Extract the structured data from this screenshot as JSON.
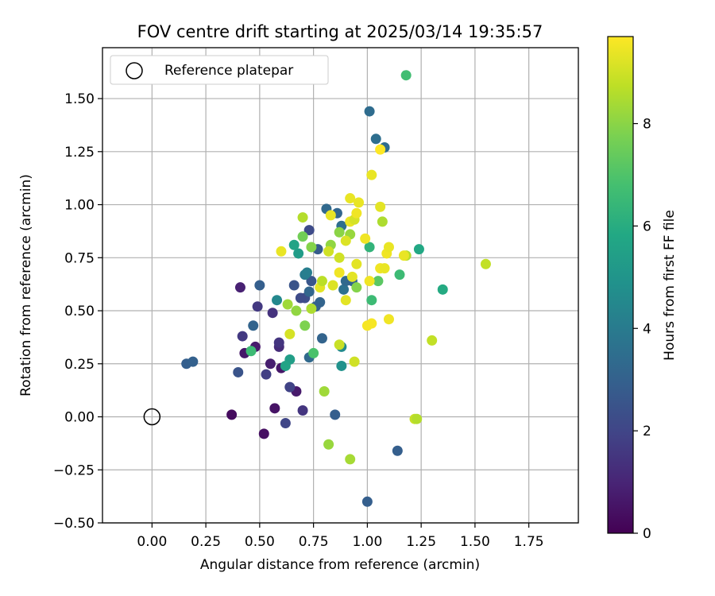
{
  "chart_data": {
    "type": "scatter",
    "title": "FOV centre drift starting at 2025/03/14 19:35:57",
    "xlabel": "Angular distance from reference (arcmin)",
    "ylabel": "Rotation from reference (arcmin)",
    "xlim": [
      -0.23,
      1.98
    ],
    "ylim": [
      -0.5,
      1.74
    ],
    "xticks": [
      "0.00",
      "0.25",
      "0.50",
      "0.75",
      "1.00",
      "1.25",
      "1.50",
      "1.75"
    ],
    "yticks": [
      "1.50",
      "1.25",
      "1.00",
      "0.75",
      "0.50",
      "0.25",
      "0.00",
      "−0.25",
      "−0.50"
    ],
    "grid": true,
    "legend": {
      "position": "top-left",
      "entries": [
        "Reference platepar"
      ]
    },
    "reference": {
      "name": "Reference platepar",
      "x": 0.0,
      "y": 0.0
    },
    "colorbar": {
      "label": "Hours from first FF file",
      "min": 0,
      "max": 9.7,
      "ticks": [
        "0",
        "2",
        "4",
        "6",
        "8"
      ],
      "colormap": "viridis"
    },
    "points": [
      [
        0.37,
        0.01,
        0.3
      ],
      [
        0.52,
        -0.08,
        0.4
      ],
      [
        0.57,
        0.04,
        0.5
      ],
      [
        0.6,
        0.23,
        0.6
      ],
      [
        0.55,
        0.25,
        0.8
      ],
      [
        0.48,
        0.33,
        0.7
      ],
      [
        0.43,
        0.3,
        0.6
      ],
      [
        0.41,
        0.61,
        0.9
      ],
      [
        0.67,
        0.12,
        0.7
      ],
      [
        0.59,
        0.33,
        1.2
      ],
      [
        0.7,
        0.03,
        1.5
      ],
      [
        0.62,
        -0.03,
        2.0
      ],
      [
        0.59,
        0.35,
        1.5
      ],
      [
        0.56,
        0.49,
        1.4
      ],
      [
        0.49,
        0.52,
        1.6
      ],
      [
        0.42,
        0.38,
        1.6
      ],
      [
        0.53,
        0.2,
        1.8
      ],
      [
        0.64,
        0.14,
        1.9
      ],
      [
        0.4,
        0.21,
        2.5
      ],
      [
        0.16,
        0.25,
        2.9
      ],
      [
        0.19,
        0.26,
        3.0
      ],
      [
        0.85,
        0.01,
        2.9
      ],
      [
        1.0,
        -0.4,
        2.9
      ],
      [
        1.14,
        -0.16,
        2.9
      ],
      [
        0.5,
        0.62,
        2.9
      ],
      [
        0.47,
        0.43,
        3.1
      ],
      [
        0.66,
        0.62,
        2.5
      ],
      [
        0.71,
        0.56,
        2.3
      ],
      [
        0.69,
        0.56,
        2.2
      ],
      [
        0.74,
        0.64,
        2.6
      ],
      [
        0.73,
        0.59,
        3.2
      ],
      [
        0.78,
        0.54,
        3.1
      ],
      [
        0.76,
        0.52,
        3.0
      ],
      [
        0.79,
        0.37,
        3.1
      ],
      [
        0.73,
        0.88,
        2.2
      ],
      [
        0.77,
        0.79,
        2.8
      ],
      [
        0.81,
        0.98,
        3.3
      ],
      [
        0.86,
        0.96,
        3.2
      ],
      [
        0.88,
        0.9,
        3.5
      ],
      [
        0.89,
        0.6,
        3.6
      ],
      [
        0.9,
        0.64,
        3.3
      ],
      [
        0.93,
        0.64,
        3.1
      ],
      [
        0.71,
        0.67,
        4.0
      ],
      [
        0.72,
        0.68,
        4.1
      ],
      [
        0.73,
        0.28,
        3.3
      ],
      [
        1.01,
        1.44,
        3.4
      ],
      [
        1.04,
        1.31,
        3.5
      ],
      [
        1.08,
        1.27,
        3.4
      ],
      [
        0.58,
        0.55,
        4.5
      ],
      [
        0.68,
        0.77,
        5.3
      ],
      [
        0.66,
        0.81,
        5.6
      ],
      [
        0.88,
        0.33,
        4.6
      ],
      [
        0.88,
        0.24,
        4.9
      ],
      [
        0.64,
        0.27,
        5.4
      ],
      [
        0.62,
        0.24,
        5.6
      ],
      [
        1.35,
        0.6,
        5.9
      ],
      [
        1.24,
        0.79,
        5.8
      ],
      [
        1.01,
        0.8,
        6.3
      ],
      [
        1.02,
        0.55,
        6.6
      ],
      [
        1.15,
        0.67,
        6.6
      ],
      [
        0.46,
        0.31,
        6.6
      ],
      [
        0.75,
        0.3,
        6.9
      ],
      [
        1.18,
        1.61,
        6.7
      ],
      [
        1.05,
        0.64,
        7.2
      ],
      [
        0.7,
        0.85,
        7.6
      ],
      [
        0.74,
        0.8,
        7.9
      ],
      [
        0.83,
        0.81,
        8.1
      ],
      [
        0.87,
        0.87,
        8.0
      ],
      [
        0.92,
        0.86,
        8.2
      ],
      [
        0.95,
        0.61,
        7.9
      ],
      [
        0.71,
        0.43,
        7.8
      ],
      [
        0.67,
        0.5,
        8.1
      ],
      [
        0.63,
        0.53,
        8.3
      ],
      [
        0.74,
        0.51,
        8.5
      ],
      [
        0.8,
        0.12,
        8.3
      ],
      [
        0.82,
        -0.13,
        8.2
      ],
      [
        0.92,
        -0.2,
        8.4
      ],
      [
        1.07,
        0.92,
        8.5
      ],
      [
        1.18,
        0.76,
        8.6
      ],
      [
        1.3,
        0.36,
        8.8
      ],
      [
        1.22,
        -0.01,
        8.9
      ],
      [
        1.23,
        -0.01,
        8.6
      ],
      [
        1.55,
        0.72,
        8.8
      ],
      [
        0.7,
        0.94,
        8.6
      ],
      [
        0.87,
        0.34,
        8.9
      ],
      [
        0.94,
        0.26,
        9.0
      ],
      [
        0.64,
        0.39,
        9.1
      ],
      [
        0.78,
        0.61,
        9.3
      ],
      [
        0.82,
        0.78,
        9.0
      ],
      [
        0.84,
        0.62,
        9.2
      ],
      [
        0.87,
        0.75,
        9.0
      ],
      [
        0.9,
        0.55,
        9.3
      ],
      [
        0.9,
        0.83,
        9.2
      ],
      [
        0.92,
        0.92,
        9.4
      ],
      [
        0.93,
        0.66,
        9.3
      ],
      [
        0.94,
        0.93,
        9.1
      ],
      [
        0.95,
        0.72,
        9.3
      ],
      [
        0.96,
        1.01,
        9.4
      ],
      [
        0.92,
        1.03,
        9.4
      ],
      [
        0.95,
        0.96,
        9.5
      ],
      [
        0.87,
        0.68,
        9.5
      ],
      [
        0.99,
        0.84,
        9.5
      ],
      [
        1.0,
        0.43,
        9.6
      ],
      [
        1.01,
        0.64,
        9.5
      ],
      [
        1.02,
        0.44,
        9.6
      ],
      [
        1.02,
        1.14,
        9.4
      ],
      [
        1.06,
        0.99,
        9.3
      ],
      [
        1.06,
        0.7,
        9.5
      ],
      [
        1.06,
        1.26,
        9.7
      ],
      [
        1.08,
        0.7,
        9.4
      ],
      [
        1.09,
        0.77,
        9.5
      ],
      [
        1.1,
        0.8,
        9.4
      ],
      [
        1.1,
        0.46,
        9.5
      ],
      [
        0.6,
        0.78,
        9.4
      ],
      [
        0.83,
        0.95,
        9.4
      ],
      [
        1.17,
        0.76,
        9.4
      ],
      [
        0.79,
        0.64,
        8.7
      ]
    ]
  }
}
